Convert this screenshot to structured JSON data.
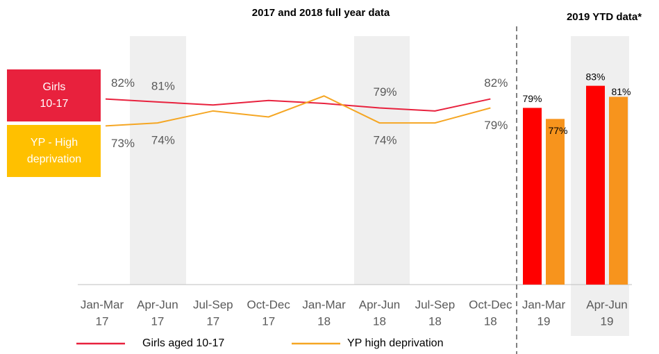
{
  "chart_data": [
    {
      "type": "line",
      "title": "2017 and 2018 full year data",
      "categories": [
        [
          "Jan-Mar",
          "17"
        ],
        [
          "Apr-Jun",
          "17"
        ],
        [
          "Jul-Sep",
          "17"
        ],
        [
          "Oct-Dec",
          "17"
        ],
        [
          "Jan-Mar",
          "18"
        ],
        [
          "Apr-Jun",
          "18"
        ],
        [
          "Jul-Sep",
          "18"
        ],
        [
          "Oct-Dec",
          "18"
        ]
      ],
      "ylim": [
        20,
        103
      ],
      "series": [
        {
          "name": "Girls aged 10-17",
          "color": "#e8213d",
          "values": [
            82,
            81,
            80,
            81.5,
            80.5,
            79,
            78,
            82
          ],
          "value_labels": [
            "82%",
            "81%",
            null,
            null,
            null,
            "79%",
            null,
            "82%"
          ]
        },
        {
          "name": "YP high deprivation",
          "color": "#f5a623",
          "values": [
            73,
            74,
            78,
            76,
            83,
            74,
            74,
            79
          ],
          "value_labels": [
            "73%",
            "74%",
            null,
            null,
            null,
            "74%",
            null,
            "79%"
          ]
        }
      ],
      "annotations": [
        [
          "Girls",
          "10-17"
        ],
        [
          "YP - High",
          "deprivation"
        ]
      ]
    },
    {
      "type": "bar",
      "title": "2019 YTD data*",
      "categories": [
        [
          "Jan-Mar",
          "19"
        ],
        [
          "Apr-Jun",
          "19"
        ]
      ],
      "ylim": [
        47,
        92
      ],
      "series": [
        {
          "name": "Girls aged 10-17",
          "color": "#ff0000",
          "values": [
            79,
            83
          ],
          "value_labels": [
            "79%",
            "83%"
          ]
        },
        {
          "name": "YP high deprivation",
          "color": "#f7941d",
          "values": [
            77,
            81
          ],
          "value_labels": [
            "77%",
            "81%"
          ]
        }
      ]
    }
  ]
}
